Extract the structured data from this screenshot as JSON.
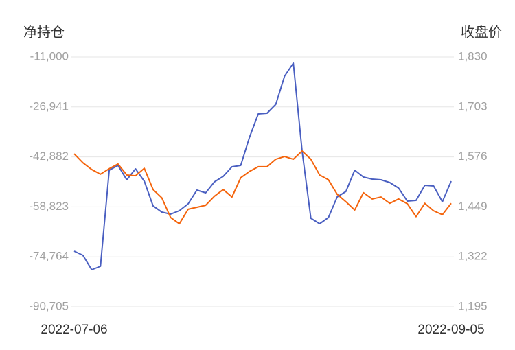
{
  "chart_data": {
    "type": "line",
    "y_label": "净持仓",
    "y2_label": "收盘价",
    "categories": [
      "2022-07-06",
      null,
      null,
      null,
      null,
      null,
      null,
      null,
      null,
      null,
      null,
      null,
      null,
      null,
      null,
      null,
      null,
      null,
      null,
      null,
      null,
      null,
      null,
      null,
      null,
      null,
      null,
      null,
      null,
      null,
      null,
      null,
      null,
      null,
      null,
      null,
      null,
      null,
      null,
      null,
      null,
      null,
      null,
      "2022-09-05"
    ],
    "series": [
      {
        "color": "#4a5fc1",
        "values": [
          -72968,
          -74282,
          -78881,
          -77786,
          -47130,
          -45597,
          -50196,
          -46692,
          -50634,
          -58516,
          -60487,
          -61144,
          -60049,
          -57860,
          -53480,
          -54356,
          -50853,
          -49101,
          -46035,
          -45597,
          -36619,
          -29174,
          -28956,
          -26109,
          -17131,
          -12971,
          -40999,
          -62458,
          -64210,
          -62239,
          -55670,
          -53918,
          -47130,
          -49320,
          -49977,
          -50196,
          -51072,
          -52823,
          -56984,
          -56765,
          -51947,
          -52166,
          -57203,
          -50634
        ]
      },
      {
        "color": "#f4640c",
        "axis": "y2",
        "values": [
          1584,
          1561,
          1544,
          1532,
          1546,
          1558,
          1530,
          1528,
          1547,
          1493,
          1472,
          1422,
          1406,
          1443,
          1448,
          1453,
          1476,
          1493,
          1474,
          1523,
          1539,
          1551,
          1551,
          1570,
          1577,
          1570,
          1591,
          1570,
          1530,
          1518,
          1481,
          1462,
          1441,
          1485,
          1469,
          1474,
          1458,
          1469,
          1457,
          1424,
          1458,
          1439,
          1429,
          1458
        ]
      }
    ],
    "ylim": [
      -90705,
      -11000
    ],
    "yticks": [
      {
        "value": -11000,
        "label": "-11,000"
      },
      {
        "value": -26941,
        "label": "-26,941"
      },
      {
        "value": -42882,
        "label": "-42,882"
      },
      {
        "value": -58823,
        "label": "-58,823"
      },
      {
        "value": -74764,
        "label": "-74,764"
      },
      {
        "value": -90705,
        "label": "-90,705"
      }
    ],
    "y2lim": [
      1195,
      1830
    ],
    "y2ticks": [
      {
        "value": 1830,
        "label": "1,830"
      },
      {
        "value": 1703,
        "label": "1,703"
      },
      {
        "value": 1576,
        "label": "1,576"
      },
      {
        "value": 1449,
        "label": "1,449"
      },
      {
        "value": 1322,
        "label": "1,322"
      },
      {
        "value": 1195,
        "label": "1,195"
      }
    ],
    "grid": true
  }
}
